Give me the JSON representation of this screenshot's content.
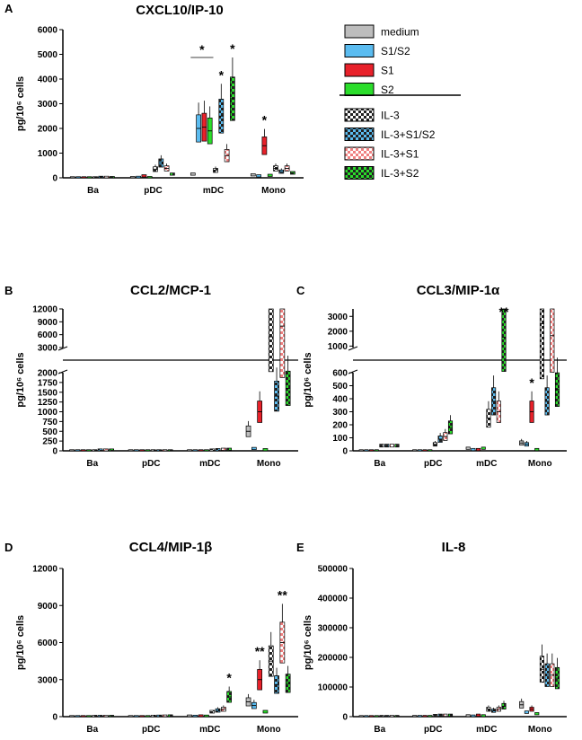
{
  "legend": {
    "items": [
      {
        "label": "medium",
        "pattern": "solid",
        "color": "#bdbdbd"
      },
      {
        "label": "S1/S2",
        "pattern": "solid",
        "color": "#5bbcf0"
      },
      {
        "label": "S1",
        "pattern": "solid",
        "color": "#e8212a"
      },
      {
        "label": "S2",
        "pattern": "solid",
        "color": "#2bdd2b"
      },
      {
        "label": "IL-3",
        "pattern": "checker",
        "color": "#ffffff"
      },
      {
        "label": "IL-3+S1/S2",
        "pattern": "checker",
        "color": "#5bbcf0"
      },
      {
        "label": "IL-3+S1",
        "pattern": "checker",
        "color": "#f08080"
      },
      {
        "label": "IL-3+S2",
        "pattern": "checker",
        "color": "#2bdd2b"
      }
    ]
  },
  "chart_data": [
    {
      "panel": "A",
      "type": "box",
      "title": "CXCL10/IP-10",
      "ylabel": "pg/10⁶ cells",
      "categories": [
        "Ba",
        "pDC",
        "mDC",
        "Mono"
      ],
      "ylim": [
        0,
        6000
      ],
      "yticks": [
        "0",
        "1000",
        "2000",
        "3000",
        "4000",
        "5000",
        "6000"
      ],
      "series": [
        {
          "name": "medium",
          "values": [
            0,
            10,
            150,
            120
          ]
        },
        {
          "name": "S1/S2",
          "values": [
            0,
            20,
            2000,
            80
          ]
        },
        {
          "name": "S1",
          "values": [
            0,
            80,
            2050,
            1300
          ]
        },
        {
          "name": "S2",
          "values": [
            0,
            10,
            1900,
            100
          ]
        },
        {
          "name": "IL-3",
          "values": [
            0,
            350,
            300,
            380
          ]
        },
        {
          "name": "IL-3+S1/S2",
          "values": [
            20,
            600,
            2500,
            250
          ]
        },
        {
          "name": "IL-3+S1",
          "values": [
            20,
            380,
            900,
            380
          ]
        },
        {
          "name": "IL-3+S2",
          "values": [
            10,
            150,
            3200,
            200
          ]
        }
      ],
      "annotations": [
        {
          "category": "mDC",
          "series": "IL-3+S1/S2",
          "text": "*"
        },
        {
          "category": "mDC",
          "series": "IL-3+S2",
          "text": "*"
        },
        {
          "category": "mDC",
          "text": "*"
        },
        {
          "category": "Mono",
          "series": "S1",
          "text": "*"
        }
      ]
    },
    {
      "panel": "B",
      "type": "box",
      "title": "CCL2/MCP-1",
      "ylabel": "pg/10⁶ cells",
      "categories": [
        "Ba",
        "pDC",
        "mDC",
        "Mono"
      ],
      "ylim": [
        0,
        12000
      ],
      "axis_break": [
        2000,
        3000
      ],
      "yticks": [
        "0",
        "250",
        "500",
        "750",
        "1000",
        "1250",
        "1500",
        "1750",
        "2000",
        "3000",
        "6000",
        "9000",
        "12000"
      ],
      "series": [
        {
          "name": "medium",
          "values": [
            0,
            0,
            0,
            500
          ]
        },
        {
          "name": "S1/S2",
          "values": [
            0,
            0,
            0,
            60
          ]
        },
        {
          "name": "S1",
          "values": [
            0,
            0,
            0,
            1000
          ]
        },
        {
          "name": "S2",
          "values": [
            0,
            0,
            0,
            30
          ]
        },
        {
          "name": "IL-3",
          "values": [
            0,
            0,
            20,
            5500
          ]
        },
        {
          "name": "IL-3+S1/S2",
          "values": [
            20,
            0,
            30,
            1400
          ]
        },
        {
          "name": "IL-3+S1",
          "values": [
            20,
            0,
            40,
            8000
          ]
        },
        {
          "name": "IL-3+S2",
          "values": [
            20,
            0,
            40,
            1600
          ]
        }
      ]
    },
    {
      "panel": "C",
      "type": "box",
      "title": "CCL3/MIP-1α",
      "ylabel": "pg/10⁶ cells",
      "categories": [
        "Ba",
        "pDC",
        "mDC",
        "Mono"
      ],
      "ylim": [
        0,
        3500
      ],
      "axis_break": [
        600,
        900
      ],
      "yticks": [
        "0",
        "100",
        "200",
        "300",
        "400",
        "500",
        "600",
        "1000",
        "2000",
        "3000"
      ],
      "series": [
        {
          "name": "medium",
          "values": [
            0,
            0,
            20,
            60
          ]
        },
        {
          "name": "S1/S2",
          "values": [
            0,
            0,
            10,
            50
          ]
        },
        {
          "name": "S1",
          "values": [
            0,
            0,
            10,
            300
          ]
        },
        {
          "name": "S2",
          "values": [
            0,
            0,
            20,
            10
          ]
        },
        {
          "name": "IL-3",
          "values": [
            40,
            50,
            250,
            2500
          ]
        },
        {
          "name": "IL-3+S1/S2",
          "values": [
            40,
            90,
            380,
            380
          ]
        },
        {
          "name": "IL-3+S1",
          "values": [
            40,
            110,
            300,
            1700
          ]
        },
        {
          "name": "IL-3+S2",
          "values": [
            40,
            180,
            1600,
            470
          ]
        }
      ],
      "annotations": [
        {
          "category": "mDC",
          "series": "IL-3+S2",
          "text": "**"
        },
        {
          "category": "Mono",
          "series": "S1",
          "text": "*"
        }
      ]
    },
    {
      "panel": "D",
      "type": "box",
      "title": "CCL4/MIP-1β",
      "ylabel": "pg/10⁶ cells",
      "categories": [
        "Ba",
        "pDC",
        "mDC",
        "Mono"
      ],
      "ylim": [
        0,
        12000
      ],
      "yticks": [
        "0",
        "3000",
        "6000",
        "9000",
        "12000"
      ],
      "series": [
        {
          "name": "medium",
          "values": [
            0,
            0,
            50,
            1200
          ]
        },
        {
          "name": "S1/S2",
          "values": [
            0,
            0,
            30,
            900
          ]
        },
        {
          "name": "S1",
          "values": [
            0,
            0,
            60,
            3000
          ]
        },
        {
          "name": "S2",
          "values": [
            0,
            0,
            40,
            400
          ]
        },
        {
          "name": "IL-3",
          "values": [
            20,
            30,
            400,
            4500
          ]
        },
        {
          "name": "IL-3+S1/S2",
          "values": [
            20,
            40,
            500,
            2600
          ]
        },
        {
          "name": "IL-3+S1",
          "values": [
            20,
            50,
            600,
            6000
          ]
        },
        {
          "name": "IL-3+S2",
          "values": [
            20,
            60,
            1600,
            2700
          ]
        }
      ],
      "annotations": [
        {
          "category": "mDC",
          "series": "IL-3+S2",
          "text": "*"
        },
        {
          "category": "Mono",
          "series": "S1",
          "text": "**"
        },
        {
          "category": "Mono",
          "series": "IL-3+S1",
          "text": "**"
        }
      ]
    },
    {
      "panel": "E",
      "type": "box",
      "title": "IL-8",
      "ylabel": "pg/10⁶ cells",
      "categories": [
        "Ba",
        "pDC",
        "mDC",
        "Mono"
      ],
      "ylim": [
        0,
        500000
      ],
      "yticks": [
        "0",
        "100000",
        "200000",
        "300000",
        "400000",
        "500000"
      ],
      "series": [
        {
          "name": "medium",
          "values": [
            0,
            500,
            3000,
            40000
          ]
        },
        {
          "name": "S1/S2",
          "values": [
            0,
            500,
            2000,
            15000
          ]
        },
        {
          "name": "S1",
          "values": [
            0,
            500,
            5000,
            25000
          ]
        },
        {
          "name": "S2",
          "values": [
            0,
            500,
            3000,
            10000
          ]
        },
        {
          "name": "IL-3",
          "values": [
            500,
            4000,
            25000,
            160000
          ]
        },
        {
          "name": "IL-3+S1/S2",
          "values": [
            500,
            5000,
            20000,
            140000
          ]
        },
        {
          "name": "IL-3+S1",
          "values": [
            500,
            5000,
            25000,
            140000
          ]
        },
        {
          "name": "IL-3+S2",
          "values": [
            500,
            5000,
            35000,
            130000
          ]
        }
      ]
    }
  ]
}
